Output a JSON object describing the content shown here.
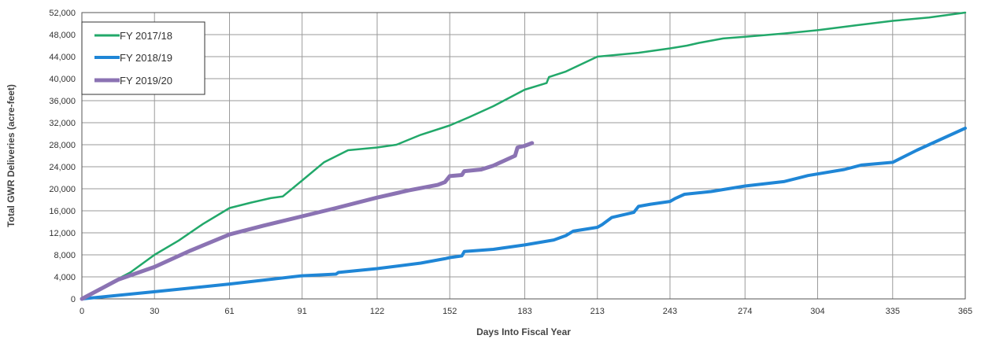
{
  "chart_data": {
    "type": "line",
    "xlabel": "Days Into Fiscal Year",
    "ylabel": "Total GWR Deliveries (acre-feet)",
    "xlim": [
      0,
      365
    ],
    "ylim": [
      0,
      52000
    ],
    "x_ticks": [
      0,
      30,
      61,
      91,
      122,
      152,
      183,
      213,
      243,
      274,
      304,
      335,
      365
    ],
    "x_tick_labels": [
      "0",
      "30",
      "61",
      "91",
      "122",
      "152",
      "183",
      "213",
      "243",
      "274",
      "304",
      "335",
      "365"
    ],
    "y_ticks": [
      0,
      4000,
      8000,
      12000,
      16000,
      20000,
      24000,
      28000,
      32000,
      36000,
      40000,
      44000,
      48000,
      52000
    ],
    "y_tick_labels": [
      "0",
      "4,000",
      "8,000",
      "12,000",
      "16,000",
      "20,000",
      "24,000",
      "28,000",
      "32,000",
      "36,000",
      "40,000",
      "44,000",
      "48,000",
      "52,000"
    ],
    "grid": true,
    "legend_position": "top-left",
    "series": [
      {
        "name": "FY 2017/18",
        "color": "#22a86a",
        "points": [
          [
            0,
            0
          ],
          [
            10,
            2500
          ],
          [
            20,
            4800
          ],
          [
            30,
            8000
          ],
          [
            40,
            10600
          ],
          [
            50,
            13600
          ],
          [
            61,
            16500
          ],
          [
            70,
            17500
          ],
          [
            78,
            18300
          ],
          [
            83,
            18600
          ],
          [
            91,
            21500
          ],
          [
            100,
            24800
          ],
          [
            110,
            27000
          ],
          [
            122,
            27500
          ],
          [
            130,
            28000
          ],
          [
            140,
            29800
          ],
          [
            152,
            31500
          ],
          [
            160,
            33000
          ],
          [
            170,
            35000
          ],
          [
            183,
            38000
          ],
          [
            192,
            39200
          ],
          [
            193,
            40300
          ],
          [
            200,
            41300
          ],
          [
            213,
            44000
          ],
          [
            230,
            44700
          ],
          [
            243,
            45500
          ],
          [
            250,
            46000
          ],
          [
            255,
            46500
          ],
          [
            265,
            47300
          ],
          [
            274,
            47600
          ],
          [
            290,
            48200
          ],
          [
            304,
            48800
          ],
          [
            320,
            49700
          ],
          [
            335,
            50500
          ],
          [
            350,
            51100
          ],
          [
            365,
            52000
          ]
        ]
      },
      {
        "name": "FY 2018/19",
        "color": "#1f86d6",
        "points": [
          [
            0,
            0
          ],
          [
            30,
            1300
          ],
          [
            61,
            2700
          ],
          [
            91,
            4200
          ],
          [
            105,
            4500
          ],
          [
            106,
            4800
          ],
          [
            122,
            5500
          ],
          [
            140,
            6500
          ],
          [
            150,
            7300
          ],
          [
            152,
            7500
          ],
          [
            157,
            7800
          ],
          [
            158,
            8600
          ],
          [
            170,
            9000
          ],
          [
            183,
            9800
          ],
          [
            195,
            10700
          ],
          [
            200,
            11500
          ],
          [
            203,
            12300
          ],
          [
            213,
            13000
          ],
          [
            215,
            13500
          ],
          [
            219,
            14800
          ],
          [
            228,
            15700
          ],
          [
            230,
            16800
          ],
          [
            235,
            17200
          ],
          [
            243,
            17700
          ],
          [
            245,
            18200
          ],
          [
            249,
            19000
          ],
          [
            260,
            19500
          ],
          [
            274,
            20500
          ],
          [
            290,
            21300
          ],
          [
            300,
            22400
          ],
          [
            315,
            23500
          ],
          [
            322,
            24300
          ],
          [
            335,
            24800
          ],
          [
            345,
            27000
          ],
          [
            365,
            31000
          ]
        ]
      },
      {
        "name": "FY 2019/20",
        "color": "#8b73b3",
        "points": [
          [
            0,
            0
          ],
          [
            15,
            3500
          ],
          [
            30,
            5800
          ],
          [
            45,
            8800
          ],
          [
            61,
            11700
          ],
          [
            75,
            13300
          ],
          [
            91,
            15000
          ],
          [
            105,
            16500
          ],
          [
            122,
            18400
          ],
          [
            135,
            19700
          ],
          [
            147,
            20700
          ],
          [
            150,
            21200
          ],
          [
            152,
            22300
          ],
          [
            157,
            22500
          ],
          [
            158,
            23200
          ],
          [
            165,
            23500
          ],
          [
            170,
            24200
          ],
          [
            175,
            25200
          ],
          [
            179,
            26000
          ],
          [
            180,
            27500
          ],
          [
            183,
            27800
          ],
          [
            186,
            28300
          ]
        ]
      }
    ]
  }
}
